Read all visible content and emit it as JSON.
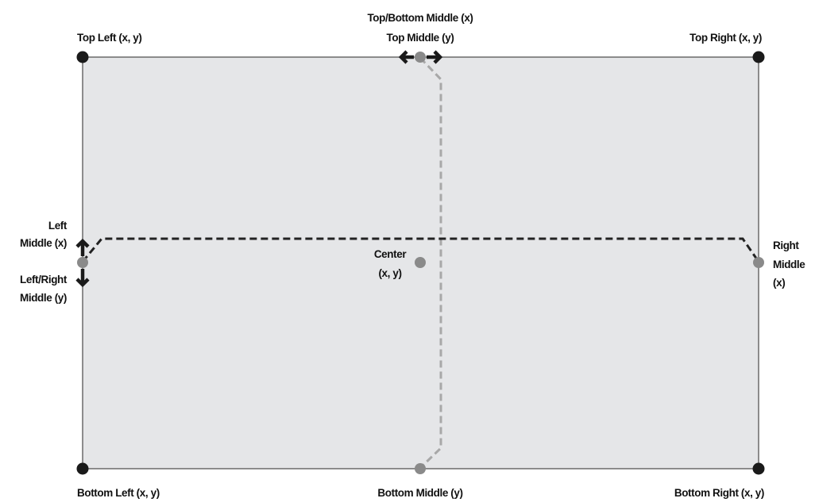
{
  "labels": {
    "top_left": "Top Left (x, y)",
    "top_middle_x": "Top/Bottom Middle (x)",
    "top_middle_y": "Top Middle (y)",
    "top_right": "Top Right (x, y)",
    "left_middle_x_1": "Left",
    "left_middle_x_2": "Middle (x)",
    "left_right_middle_y_1": "Left/Right",
    "left_right_middle_y_2": "Middle (y)",
    "center_1": "Center",
    "center_2": "(x, y)",
    "right_middle_1": "Right",
    "right_middle_2": "Middle",
    "right_middle_3": "(x)",
    "bottom_left": "Bottom Left (x, y)",
    "bottom_middle": "Bottom Middle (y)",
    "bottom_right": "Bottom Right (x, y)"
  },
  "colors": {
    "rect_fill": "#e5e6e8",
    "rect_stroke": "#555555",
    "corner_point": "#1a1a1a",
    "middle_point": "#8a8a8a",
    "dark_dash": "#222222",
    "light_dash": "#a8a8a8",
    "arrow": "#1a1a1a",
    "text": "#111111"
  }
}
